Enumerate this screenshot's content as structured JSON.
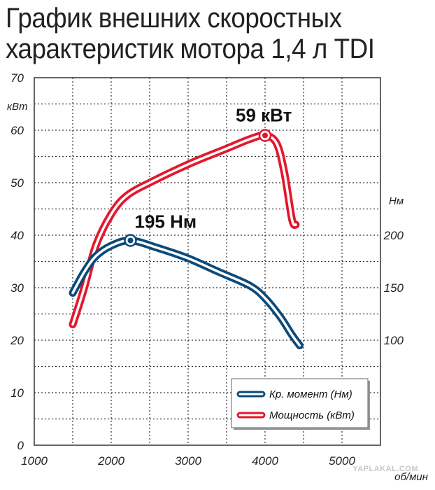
{
  "title_lines": [
    "График внешних скоростных",
    "характеристик мотора 1,4 л TDI"
  ],
  "watermark": "YAPLAKAL.COM",
  "colors": {
    "torque": "#0b4a7a",
    "power": "#e3182d",
    "grid": "#333333"
  },
  "chart_data": {
    "type": "line",
    "title": "График внешних скоростных характеристик мотора 1,4 л TDI",
    "xlabel": "об/мин",
    "ylabel_left": "кВт",
    "ylabel_right": "Нм",
    "xlim": [
      1000,
      5500
    ],
    "ylim_left": [
      0,
      70
    ],
    "ylim_right": [
      0,
      350
    ],
    "x_ticks": [
      "1000",
      "2000",
      "3000",
      "4000",
      "5000"
    ],
    "y_ticks_left": [
      "0",
      "10",
      "20",
      "30",
      "40",
      "50",
      "60",
      "70"
    ],
    "y_ticks_right": [
      "100",
      "150",
      "200"
    ],
    "y_ticks_right_values": [
      100,
      150,
      200
    ],
    "grid": true,
    "legend_position": "bottom-right",
    "series": [
      {
        "name": "Кр. момент (Нм)",
        "axis": "right",
        "x": [
          1500,
          1650,
          1800,
          2000,
          2250,
          2600,
          3000,
          3400,
          3800,
          4000,
          4200,
          4350,
          4450
        ],
        "y": [
          145,
          165,
          180,
          190,
          195,
          188,
          178,
          165,
          152,
          140,
          122,
          105,
          95
        ],
        "marker": {
          "x": 2250,
          "y": 195,
          "label": "195 Нм"
        }
      },
      {
        "name": "Мощность (кВт)",
        "axis": "left",
        "x": [
          1500,
          1650,
          1800,
          2000,
          2200,
          2500,
          3000,
          3500,
          3800,
          4000,
          4150,
          4250,
          4350,
          4400
        ],
        "y": [
          23,
          30,
          38,
          44,
          47.5,
          50,
          53.5,
          56.5,
          58.3,
          59,
          57.5,
          52,
          43,
          42
        ],
        "marker": {
          "x": 4000,
          "y": 59,
          "label": "59 кВт"
        }
      }
    ]
  }
}
